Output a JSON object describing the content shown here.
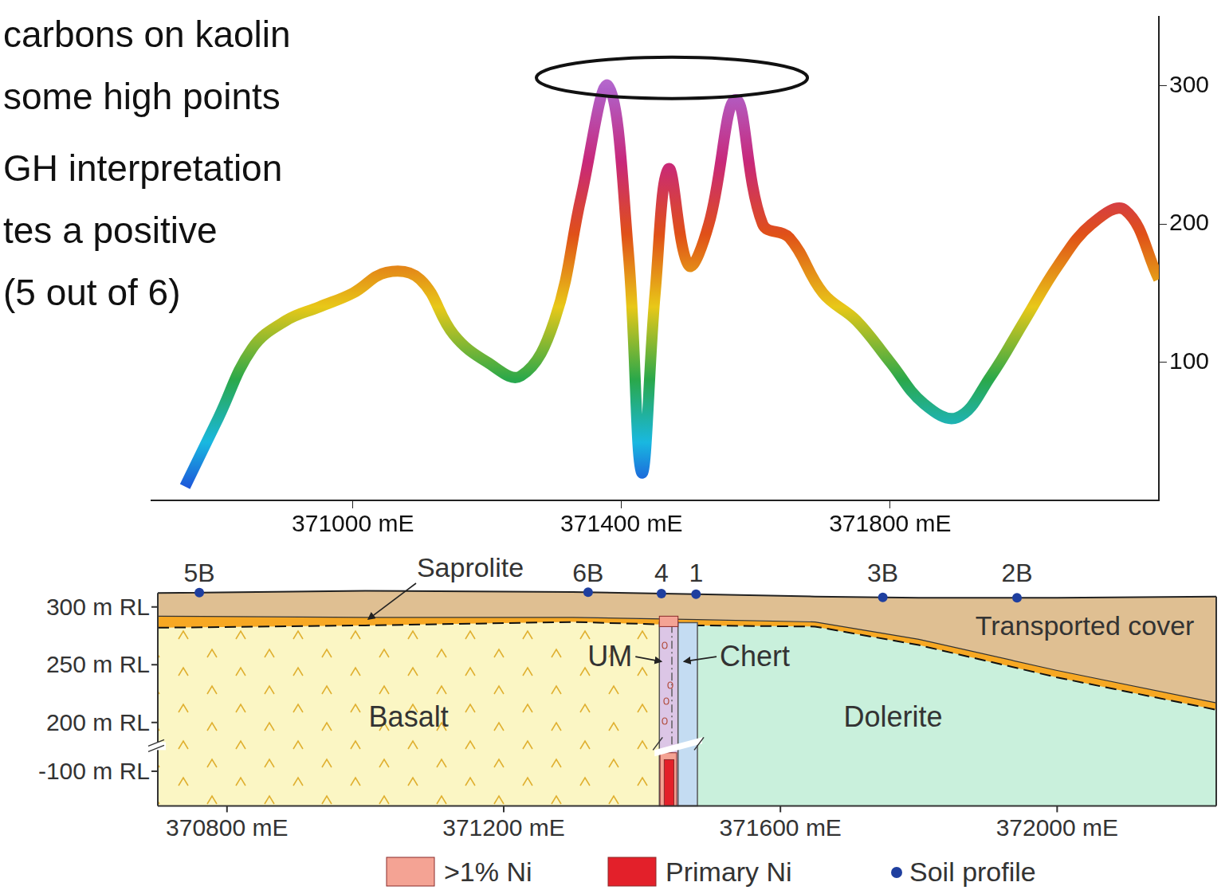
{
  "slide_text": {
    "lines": [
      "carbons on kaolin",
      "some high points",
      "GH interpretation",
      "tes a positive",
      "(5 out of 6)"
    ]
  },
  "chart_data": {
    "type": "line",
    "x": [
      370750,
      370800,
      370850,
      370900,
      370950,
      371000,
      371050,
      371100,
      371150,
      371200,
      371250,
      371300,
      371340,
      371380,
      371410,
      371430,
      371450,
      371470,
      371500,
      371530,
      371570,
      371610,
      371650,
      371700,
      371750,
      371800,
      371850,
      371900,
      371950,
      372000,
      372050,
      372100,
      372150,
      372200
    ],
    "values": [
      10,
      60,
      110,
      130,
      140,
      150,
      165,
      160,
      120,
      100,
      90,
      130,
      220,
      300,
      180,
      20,
      150,
      240,
      170,
      200,
      290,
      200,
      190,
      150,
      130,
      100,
      70,
      60,
      90,
      130,
      170,
      200,
      210,
      160
    ],
    "xlim": [
      370700,
      372200
    ],
    "xticks": [
      {
        "value": 371000,
        "label": "371000 mE"
      },
      {
        "value": 371400,
        "label": "371400 mE"
      },
      {
        "value": 371800,
        "label": "371800 mE"
      }
    ],
    "ylim": [
      0,
      350
    ],
    "yticks": [
      100,
      200,
      300
    ],
    "grid": false
  },
  "cross_section": {
    "xlim": [
      370700,
      372230
    ],
    "xticks": [
      {
        "value": 370800,
        "label": "370800 mE"
      },
      {
        "value": 371200,
        "label": "371200 mE"
      },
      {
        "value": 371600,
        "label": "371600 mE"
      },
      {
        "value": 372000,
        "label": "372000 mE"
      }
    ],
    "ylim": [
      -130,
      315
    ],
    "y_break": [
      182,
      -82
    ],
    "yticks": [
      {
        "value": 300,
        "label": "300 m RL"
      },
      {
        "value": 250,
        "label": "250 m RL"
      },
      {
        "value": 200,
        "label": "200 m RL"
      },
      {
        "value": -100,
        "label": "-100 m RL"
      }
    ],
    "surfaces": {
      "x": [
        370700,
        371000,
        371300,
        371480,
        371650,
        371800,
        372000,
        372230
      ],
      "ground": [
        312,
        314,
        313,
        311,
        309,
        308,
        308,
        309
      ],
      "saprolite_top": [
        292,
        291,
        291,
        289,
        287,
        272,
        245,
        217
      ],
      "bedrock_top": [
        282,
        284,
        287,
        284,
        283,
        267,
        239,
        211
      ]
    },
    "cover": {
      "label": "Transported cover",
      "color": "#dfbf92"
    },
    "saprolite": {
      "label": "Saprolite",
      "color": "#f7a823"
    },
    "units": [
      {
        "label": "Basalt",
        "x": [
          370700,
          371425
        ],
        "color": "#fbf6c4"
      },
      {
        "label": "UM",
        "x": [
          371425,
          371452
        ],
        "color": "#dcc6e6"
      },
      {
        "label": "Chert",
        "x": [
          371452,
          371480
        ],
        "color": "#c4dcf2"
      },
      {
        "label": "Dolerite",
        "x": [
          371480,
          372230
        ],
        "color": "#c9f0dc"
      }
    ],
    "ni_zones": [
      {
        "label": ">1% Ni",
        "color": "#f4a394",
        "parts": [
          {
            "x": [
              371425,
              371452
            ],
            "y": [
              283,
              292
            ]
          },
          {
            "x": [
              371426,
              371450
            ],
            "y": [
              -130,
              -84
            ]
          }
        ]
      },
      {
        "label": "Primary Ni",
        "color": "#e3202a",
        "parts": [
          {
            "x": [
              371432,
              371446
            ],
            "y": [
              -130,
              -90
            ]
          }
        ]
      }
    ],
    "soil_profiles": {
      "label": "Soil profile",
      "color": "#1f3f9f",
      "points": [
        {
          "name": "5B",
          "x": 370760
        },
        {
          "name": "6B",
          "x": 371322
        },
        {
          "name": "4",
          "x": 371428
        },
        {
          "name": "1",
          "x": 371478
        },
        {
          "name": "3B",
          "x": 371748
        },
        {
          "name": "2B",
          "x": 371942
        }
      ]
    }
  }
}
